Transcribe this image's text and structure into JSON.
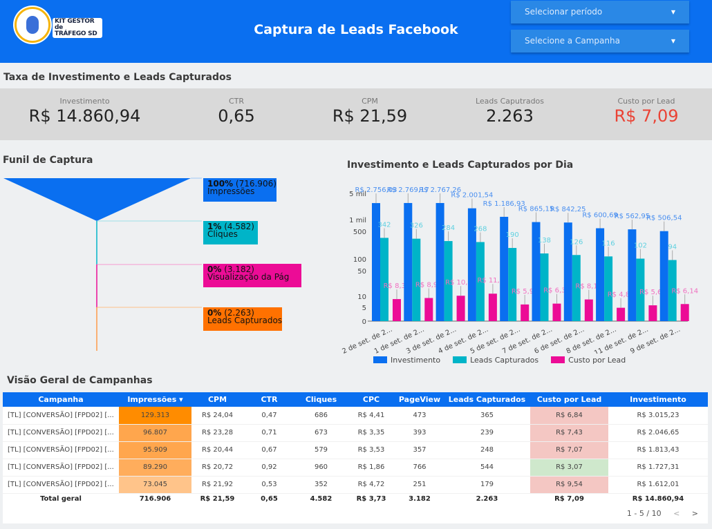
{
  "header": {
    "logo_text_line1": "KIT GESTOR de",
    "logo_text_line2": "TRÁFEGO SD",
    "title": "Captura de Leads Facebook",
    "period_dropdown": "Selecionar período",
    "campaign_dropdown": "Selecione a Campanha"
  },
  "kpi_section": {
    "title": "Taxa de Investimento e Leads Capturados",
    "items": [
      {
        "label": "Investimento",
        "value": "R$ 14.860,94"
      },
      {
        "label": "CTR",
        "value": "0,65"
      },
      {
        "label": "CPM",
        "value": "R$ 21,59"
      },
      {
        "label": "Leads Caputrados",
        "value": "2.263"
      },
      {
        "label": "Custo por Lead",
        "value": "R$ 7,09",
        "color": "#ea4335"
      }
    ]
  },
  "funnel": {
    "title": "Funil de Captura",
    "stages": [
      {
        "pct": "100%",
        "count": "(716.906)",
        "name": "Impressões",
        "color": "#0a6ff0"
      },
      {
        "pct": "1%",
        "count": "(4.582)",
        "name": "Cliques",
        "color": "#00b4c8"
      },
      {
        "pct": "0%",
        "count": "(3.182)",
        "name": "Visualização da Pág",
        "color": "#ec0c96"
      },
      {
        "pct": "0%",
        "count": "(2.263)",
        "name": "Leads Capturados",
        "color": "#ff7100"
      }
    ]
  },
  "chart_data": {
    "type": "bar",
    "title": "Investimento e Leads Capturados por Dia",
    "xlabel": "",
    "ylabel": "",
    "y_scale": "log",
    "y_ticks": [
      "0",
      "5",
      "10",
      "50",
      "100",
      "500",
      "1 mil",
      "5 mil"
    ],
    "categories": [
      "2 de set. de 2...",
      "1 de set. de 2...",
      "3 de set. de 2...",
      "4 de set. de 2...",
      "5 de set. de 2...",
      "7 de set. de 2...",
      "6 de set. de 2...",
      "8 de set. de 2...",
      "11 de set. de 2...",
      "9 de set. de 2..."
    ],
    "series": [
      {
        "name": "Investimento",
        "color": "#0a6ff0",
        "values": [
          2756.03,
          2769.17,
          2767.26,
          2001.54,
          1186.93,
          865.15,
          842.25,
          600.69,
          562.95,
          506.54
        ],
        "labels": [
          "R$ 2.756,03",
          "R$ 2.769,17",
          "R$ 2.767,26",
          "R$ 2.001,54",
          "R$ 1.186,93",
          "R$ 865,15",
          "R$ 842,25",
          "R$ 600,69",
          "R$ 562,95",
          "R$ 506,54"
        ]
      },
      {
        "name": "Leads Capturados",
        "color": "#00b4c8",
        "values": [
          342,
          326,
          284,
          268,
          190,
          138,
          126,
          116,
          102,
          94
        ],
        "labels": [
          "342",
          "326",
          "284",
          "268",
          "190",
          "138",
          "126",
          "116",
          "102",
          "94"
        ]
      },
      {
        "name": "Custo por Lead",
        "color": "#ec0c96",
        "values": [
          8.38,
          8.97,
          10.34,
          11.78,
          5.98,
          6.31,
          8.19,
          4.84,
          5.67,
          6.14
        ],
        "labels": [
          "R$ 8,38",
          "R$ 8,97",
          "R$ 10,34",
          "R$ 11,78",
          "R$ 5,98",
          "R$ 6,31",
          "R$ 8,19",
          "R$ 4,84",
          "R$ 5,67",
          "R$ 6,14"
        ]
      }
    ],
    "legend": "bottom"
  },
  "table": {
    "title": "Visão Geral de Campanhas",
    "columns": [
      "Campanha",
      "Impressões ▾",
      "CPM",
      "CTR",
      "Cliques",
      "CPC",
      "PageView",
      "Leads Capturados",
      "Custo por Lead",
      "Investimento"
    ],
    "rows": [
      {
        "cells": [
          "[TL] [CONVERSÃO] [FPD02] [...",
          "129.313",
          "R$ 24,04",
          "0,47",
          "686",
          "R$ 4,41",
          "473",
          "365",
          "R$ 6,84",
          "R$ 3.015,23"
        ],
        "imp_bg": "#ff8c00",
        "cpl_bg": "#f4c7c3"
      },
      {
        "cells": [
          "[TL] [CONVERSÃO] [FPD02] [...",
          "96.807",
          "R$ 23,28",
          "0,71",
          "673",
          "R$ 3,35",
          "393",
          "239",
          "R$ 7,43",
          "R$ 2.046,65"
        ],
        "imp_bg": "#ffa64d",
        "cpl_bg": "#f4c7c3"
      },
      {
        "cells": [
          "[TL] [CONVERSÃO] [FPD02] [...",
          "95.909",
          "R$ 20,44",
          "0,67",
          "579",
          "R$ 3,53",
          "357",
          "248",
          "R$ 7,07",
          "R$ 1.813,43"
        ],
        "imp_bg": "#ffa64d",
        "cpl_bg": "#f4c7c3"
      },
      {
        "cells": [
          "[TL] [CONVERSÃO] [FPD02] [...",
          "89.290",
          "R$ 20,72",
          "0,92",
          "960",
          "R$ 1,86",
          "766",
          "544",
          "R$ 3,07",
          "R$ 1.727,31"
        ],
        "imp_bg": "#ffad5c",
        "cpl_bg": "#cfe8cc"
      },
      {
        "cells": [
          "[TL] [CONVERSÃO] [FPD02] [...",
          "73.045",
          "R$ 21,92",
          "0,53",
          "352",
          "R$ 4,72",
          "251",
          "179",
          "R$ 9,54",
          "R$ 1.612,01"
        ],
        "imp_bg": "#ffc48a",
        "cpl_bg": "#f4c7c3"
      }
    ],
    "total": [
      "Total geral",
      "716.906",
      "R$ 21,59",
      "0,65",
      "4.582",
      "R$ 3,73",
      "3.182",
      "2.263",
      "R$ 7,09",
      "R$ 14.860,94"
    ],
    "pagination": {
      "range": "1 - 5 / 10",
      "prev": "<",
      "next": ">"
    }
  }
}
